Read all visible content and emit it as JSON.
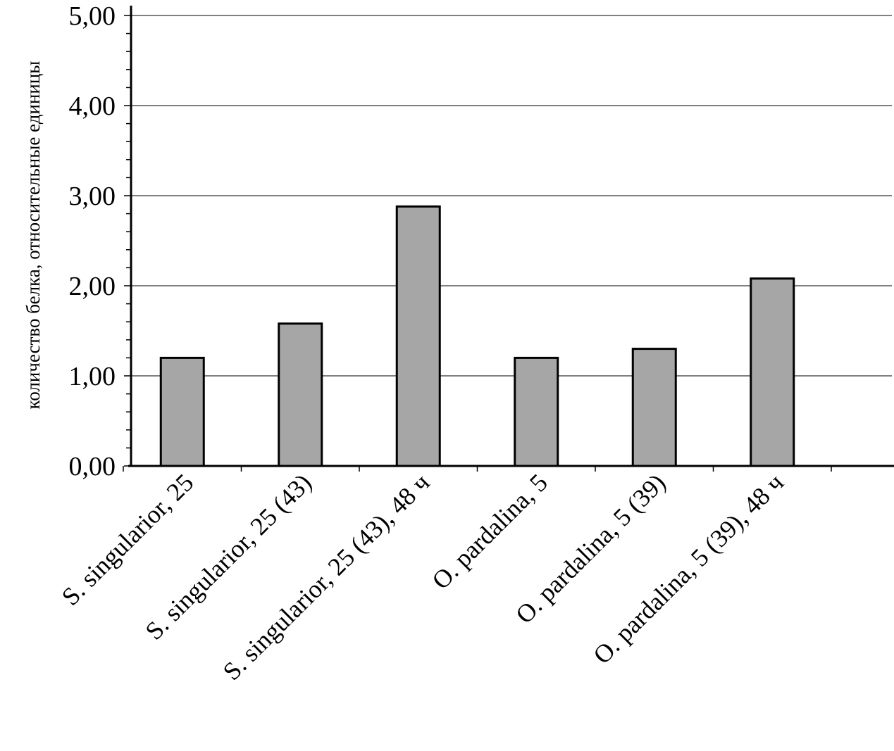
{
  "chart_data": {
    "type": "bar",
    "title": "",
    "xlabel": "",
    "ylabel": "количество белка, относительные единицы",
    "categories": [
      "S. singularior, 25",
      "S. singularior, 25 (43)",
      "S. singularior, 25 (43), 48 ч",
      "O. pardalina, 5",
      "O. pardalina, 5 (39)",
      "O. pardalina, 5 (39), 48 ч"
    ],
    "values": [
      1.2,
      1.58,
      2.88,
      1.2,
      1.3,
      2.08
    ],
    "ylim": [
      0,
      5
    ],
    "yticks": [
      0,
      1,
      2,
      3,
      4,
      5
    ],
    "ytick_labels": [
      "0,00",
      "1,00",
      "2,00",
      "3,00",
      "4,00",
      "5,00"
    ],
    "grid": true,
    "legend": "none",
    "colors": {
      "bar_fill": "#a6a6a6",
      "bar_stroke": "#000000",
      "grid": "#000000",
      "axis": "#000000"
    }
  }
}
